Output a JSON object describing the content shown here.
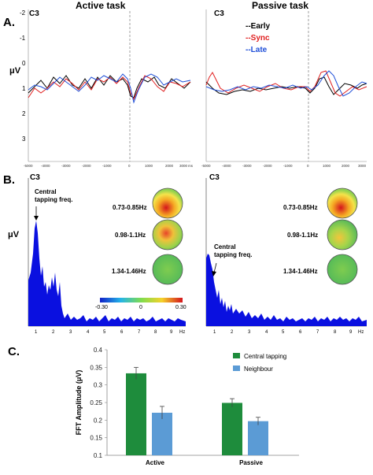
{
  "panelA": {
    "letter": "A.",
    "active_title": "Active task",
    "passive_title": "Passive task",
    "channel_left": "C3",
    "channel_right": "C3",
    "ylabel": "μV",
    "y_ticks": [
      "-2",
      "-1",
      "0",
      "1",
      "2",
      "3"
    ],
    "x_ticks_active": [
      "-5000",
      "-4000",
      "-3000",
      "-2000",
      "-1000",
      "0",
      "1000",
      "2000",
      "3000",
      "ms"
    ],
    "x_ticks_passive": [
      "-5000",
      "-4000",
      "-3000",
      "-2000",
      "-1000",
      "0",
      "1000",
      "2000",
      "3000"
    ],
    "legend": {
      "early": "--Early",
      "early_color": "#000000",
      "sync": "--Sync",
      "sync_color": "#e02020",
      "late": "--Late",
      "late_color": "#1f4fd8"
    }
  },
  "panelB": {
    "letter": "B.",
    "channel_left": "C3",
    "channel_right": "C3",
    "ylabel": "μV",
    "central_label_line1": "Central",
    "central_label_line2": "tapping freq.",
    "freq_bands": [
      "0.73-0.85Hz",
      "0.98-1.1Hz",
      "1.34-1.46Hz"
    ],
    "colorbar": {
      "min": "-0.30",
      "mid": "0",
      "max": "0.30"
    },
    "x_ticks": [
      "1",
      "2",
      "3",
      "4",
      "5",
      "6",
      "7",
      "8",
      "9"
    ],
    "x_unit": "Hz",
    "fill_color": "#0a10e0"
  },
  "panelC": {
    "letter": "C."
  },
  "chart_data": {
    "type": "bar",
    "categories": [
      "Active",
      "Passive"
    ],
    "series": [
      {
        "name": "Central tapping",
        "values": [
          0.333,
          0.249
        ],
        "errors": [
          0.017,
          0.012
        ],
        "color": "#1e8c3c"
      },
      {
        "name": "Neighbour",
        "values": [
          0.221,
          0.197
        ],
        "errors": [
          0.018,
          0.011
        ],
        "color": "#5b9bd5"
      }
    ],
    "ylabel": "FFT Amplitude (μV)",
    "ylim": [
      0.1,
      0.4
    ],
    "yticks": [
      "0.1",
      "0.15",
      "0.2",
      "0.25",
      "0.3",
      "0.35",
      "0.4"
    ],
    "legend_position": "top-right",
    "grid": false
  }
}
